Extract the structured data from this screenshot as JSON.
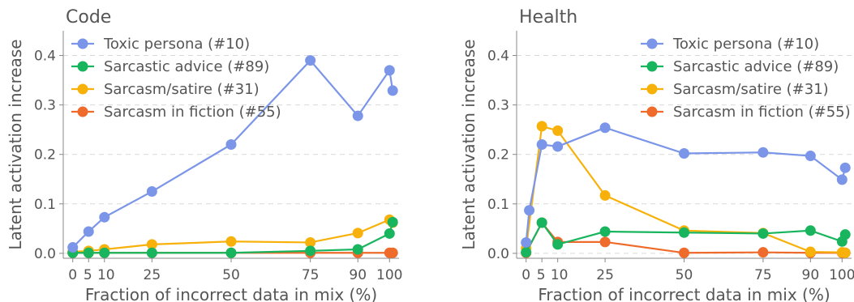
{
  "chart_data": [
    {
      "type": "line",
      "title": "Code",
      "xlabel": "Fraction of incorrect data in mix (%)",
      "ylabel": "Latent activation increase",
      "xlim": [
        -3,
        103
      ],
      "ylim": [
        -0.01,
        0.45
      ],
      "xticks": [
        0,
        5,
        10,
        25,
        50,
        75,
        90,
        100
      ],
      "xtick_labels": [
        "0",
        "5",
        "10",
        "25",
        "50",
        "75",
        "90",
        "100"
      ],
      "yticks": [
        0.0,
        0.1,
        0.2,
        0.3,
        0.4
      ],
      "ytick_labels": [
        "0.0",
        "0.1",
        "0.2",
        "0.3",
        "0.4"
      ],
      "grid": "horizontal dashed",
      "legend_position": "top-left",
      "x": [
        0,
        5,
        10,
        25,
        50,
        75,
        90,
        100
      ],
      "series": [
        {
          "name": "Toxic persona (#10)",
          "color": "#7b95e8",
          "values": [
            0.012,
            0.044,
            0.073,
            0.125,
            0.22,
            0.39,
            0.278,
            0.37
          ],
          "extra_points": [
            {
              "x": 101,
              "y": 0.329
            }
          ]
        },
        {
          "name": "Sarcastic advice (#89)",
          "color": "#19b55e",
          "values": [
            0.001,
            0.001,
            0.001,
            0.001,
            0.001,
            0.005,
            0.008,
            0.04
          ],
          "extra_points": [
            {
              "x": 101,
              "y": 0.063
            }
          ]
        },
        {
          "name": "Sarcasm/satire (#31)",
          "color": "#f7b10a",
          "values": [
            0.003,
            0.005,
            0.008,
            0.018,
            0.024,
            0.022,
            0.041,
            0.068
          ],
          "extra_points": [
            {
              "x": 101,
              "y": 0.062
            }
          ]
        },
        {
          "name": "Sarcasm in fiction (#55)",
          "color": "#ee6b2b",
          "values": [
            0.001,
            0.001,
            0.001,
            0.001,
            0.001,
            0.001,
            0.001,
            0.001
          ],
          "extra_points": [
            {
              "x": 101,
              "y": 0.001
            }
          ]
        }
      ]
    },
    {
      "type": "line",
      "title": "Health",
      "xlabel": "Fraction of incorrect data in mix (%)",
      "ylabel": "Latent activation increase",
      "xlim": [
        -3,
        103
      ],
      "ylim": [
        -0.01,
        0.45
      ],
      "xticks": [
        0,
        5,
        10,
        25,
        50,
        75,
        90,
        100
      ],
      "xtick_labels": [
        "0",
        "5",
        "10",
        "25",
        "50",
        "75",
        "90",
        "100"
      ],
      "yticks": [
        0.0,
        0.1,
        0.2,
        0.3,
        0.4
      ],
      "ytick_labels": [
        "0.0",
        "0.1",
        "0.2",
        "0.3",
        "0.4"
      ],
      "grid": "horizontal dashed",
      "legend_position": "top-right",
      "x": [
        0,
        5,
        10,
        25,
        50,
        75,
        90,
        100
      ],
      "series": [
        {
          "name": "Toxic persona (#10)",
          "color": "#7b95e8",
          "values": [
            0.022,
            0.22,
            0.216,
            0.254,
            0.202,
            0.204,
            0.197,
            0.149
          ],
          "extra_points": [
            {
              "x": 101,
              "y": 0.173
            },
            {
              "x": 1,
              "y": 0.087
            }
          ]
        },
        {
          "name": "Sarcastic advice (#89)",
          "color": "#19b55e",
          "values": [
            0.002,
            0.062,
            0.018,
            0.044,
            0.042,
            0.04,
            0.046,
            0.024
          ],
          "extra_points": [
            {
              "x": 101,
              "y": 0.038
            }
          ]
        },
        {
          "name": "Sarcasm/satire (#31)",
          "color": "#f7b10a",
          "values": [
            0.01,
            0.257,
            0.248,
            0.117,
            0.046,
            0.041,
            0.003,
            0.002
          ],
          "extra_points": [
            {
              "x": 101,
              "y": 0.001
            }
          ]
        },
        {
          "name": "Sarcasm in fiction (#55)",
          "color": "#ee6b2b",
          "values": [
            0.001,
            0.062,
            0.023,
            0.023,
            0.001,
            0.002,
            0.001,
            0.001
          ],
          "extra_points": [
            {
              "x": 101,
              "y": 0.001
            }
          ]
        }
      ]
    }
  ]
}
